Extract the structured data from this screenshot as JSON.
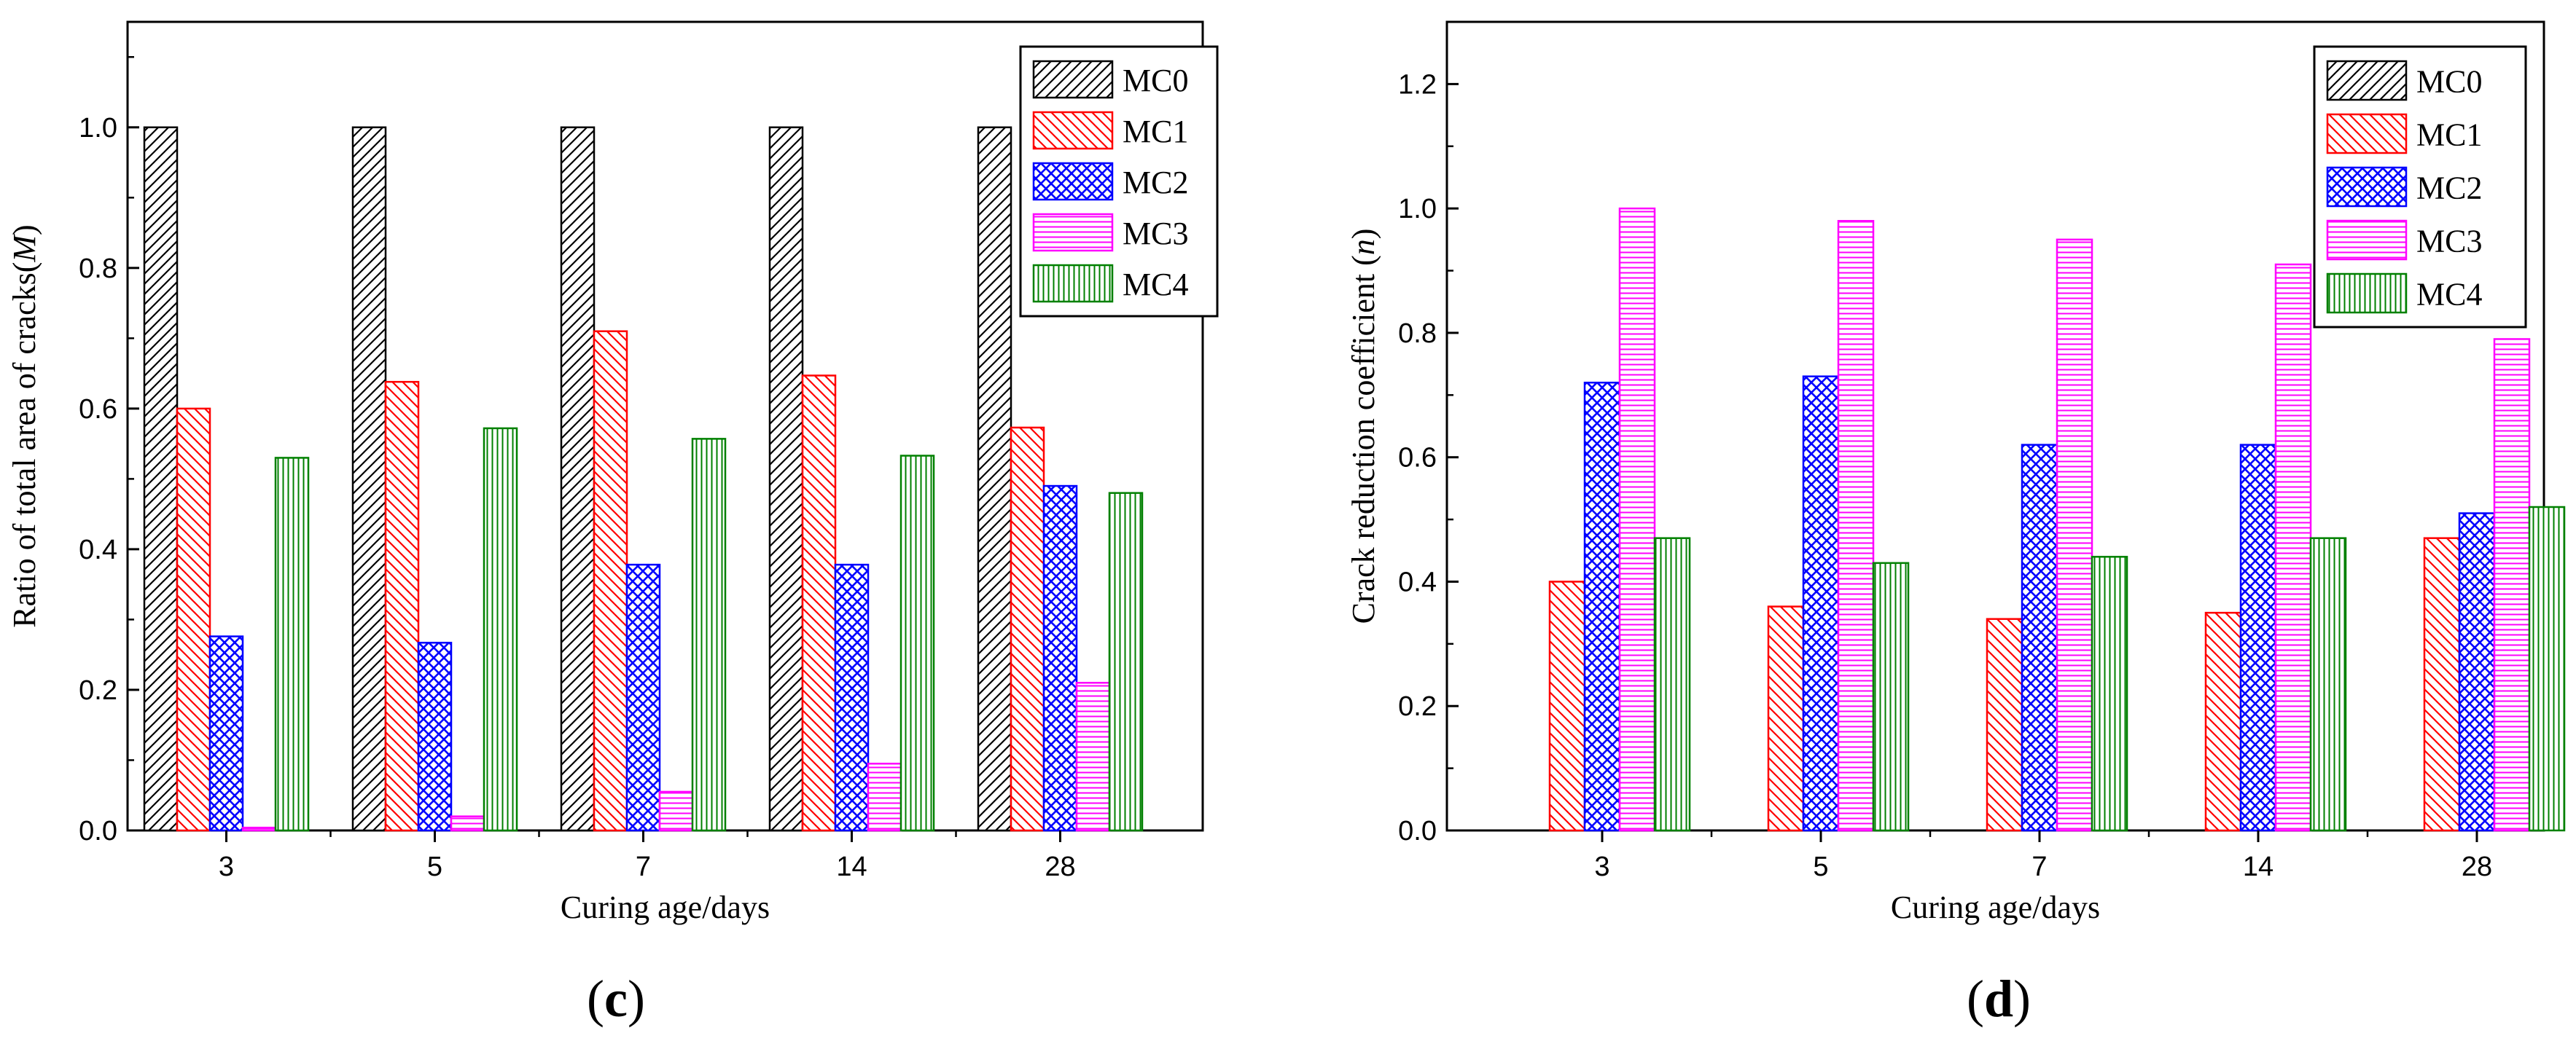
{
  "chart_data": [
    {
      "type": "bar",
      "panel_label": "(c)",
      "xlabel": "Curing age/days",
      "ylabel": "Ratio of total area of cracks(M)",
      "ylabel_main": "Ratio of total area of cracks(",
      "ylabel_symbol": "M",
      "ylabel_close": ")",
      "ylim": [
        0,
        1.15
      ],
      "yticks": [
        "0.0",
        "0.2",
        "0.4",
        "0.6",
        "0.8",
        "1.0"
      ],
      "categories": [
        "3",
        "5",
        "7",
        "14",
        "28"
      ],
      "legend_position": "top-right",
      "grid": false,
      "series": [
        {
          "name": "MC0",
          "color": "#000000",
          "pattern": "diag-right",
          "values": [
            1.0,
            1.0,
            1.0,
            1.0,
            1.0
          ]
        },
        {
          "name": "MC1",
          "color": "#ff0000",
          "pattern": "diag-left",
          "values": [
            0.6,
            0.638,
            0.71,
            0.647,
            0.573
          ]
        },
        {
          "name": "MC2",
          "color": "#0000ff",
          "pattern": "cross-hatch",
          "values": [
            0.276,
            0.267,
            0.378,
            0.378,
            0.49
          ]
        },
        {
          "name": "MC3",
          "color": "#ff00ff",
          "pattern": "horizontal",
          "values": [
            0.004,
            0.02,
            0.055,
            0.095,
            0.21
          ]
        },
        {
          "name": "MC4",
          "color": "#008000",
          "pattern": "vertical",
          "values": [
            0.53,
            0.572,
            0.557,
            0.533,
            0.48
          ]
        }
      ]
    },
    {
      "type": "bar",
      "panel_label": "(d)",
      "xlabel": "Curing age/days",
      "ylabel": "Crack reduction coefficient (n)",
      "ylabel_main": "Crack reduction coefficient (",
      "ylabel_symbol": "n",
      "ylabel_close": ")",
      "ylim": [
        0,
        1.3
      ],
      "yticks": [
        "0.0",
        "0.2",
        "0.4",
        "0.6",
        "0.8",
        "1.0",
        "1.2"
      ],
      "categories": [
        "3",
        "5",
        "7",
        "14",
        "28"
      ],
      "legend_position": "top-right",
      "grid": false,
      "series": [
        {
          "name": "MC0",
          "color": "#000000",
          "pattern": "diag-right",
          "values": [
            0,
            0,
            0,
            0,
            0
          ]
        },
        {
          "name": "MC1",
          "color": "#ff0000",
          "pattern": "diag-left",
          "values": [
            0.4,
            0.36,
            0.34,
            0.35,
            0.47
          ]
        },
        {
          "name": "MC2",
          "color": "#0000ff",
          "pattern": "cross-hatch",
          "values": [
            0.72,
            0.73,
            0.62,
            0.62,
            0.51
          ]
        },
        {
          "name": "MC3",
          "color": "#ff00ff",
          "pattern": "horizontal",
          "values": [
            1.0,
            0.98,
            0.95,
            0.91,
            0.79
          ]
        },
        {
          "name": "MC4",
          "color": "#008000",
          "pattern": "vertical",
          "values": [
            0.47,
            0.43,
            0.44,
            0.47,
            0.52
          ]
        }
      ]
    }
  ]
}
